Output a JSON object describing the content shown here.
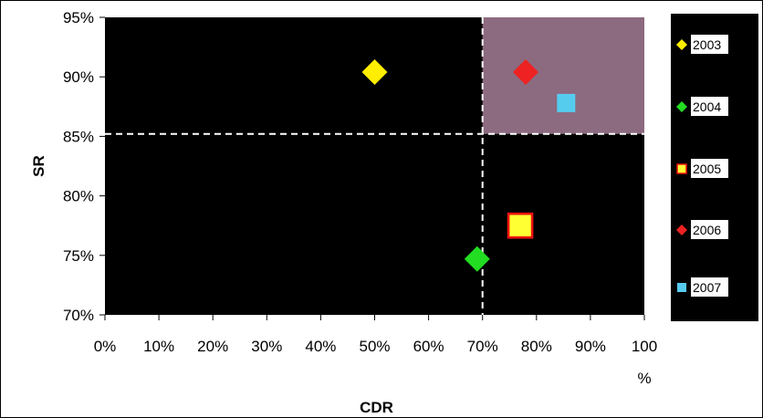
{
  "chart_data": {
    "type": "scatter",
    "xlabel": "CDR",
    "ylabel": "SR",
    "xlim": [
      0,
      100
    ],
    "ylim": [
      70,
      95
    ],
    "x_ticks": [
      "0%",
      "10%",
      "20%",
      "30%",
      "40%",
      "50%",
      "60%",
      "70%",
      "80%",
      "90%",
      "100"
    ],
    "x_tick_overflow": "%",
    "y_ticks": [
      "70%",
      "75%",
      "80%",
      "85%",
      "90%",
      "95%"
    ],
    "threshold_x": 70,
    "threshold_y": 85.2,
    "highlight_region": {
      "x": [
        70,
        100
      ],
      "y": [
        85.2,
        95
      ],
      "color": "#8c6a80"
    },
    "plot_background": "#000000",
    "legend_background": "#000000",
    "grid": false,
    "legend_position": "right",
    "series": [
      {
        "name": "2003",
        "marker": "diamond",
        "color": "#ffee00",
        "x": 50,
        "y": 90.4
      },
      {
        "name": "2004",
        "marker": "diamond",
        "color": "#22dd22",
        "x": 69,
        "y": 74.7
      },
      {
        "name": "2005",
        "marker": "square",
        "color": "#ffff33",
        "edge_color": "#ee1111",
        "x": 77,
        "y": 77.5
      },
      {
        "name": "2006",
        "marker": "diamond",
        "color": "#ee2222",
        "x": 78,
        "y": 90.4
      },
      {
        "name": "2007",
        "marker": "square",
        "color": "#55ccee",
        "x": 85.5,
        "y": 87.8
      }
    ]
  }
}
